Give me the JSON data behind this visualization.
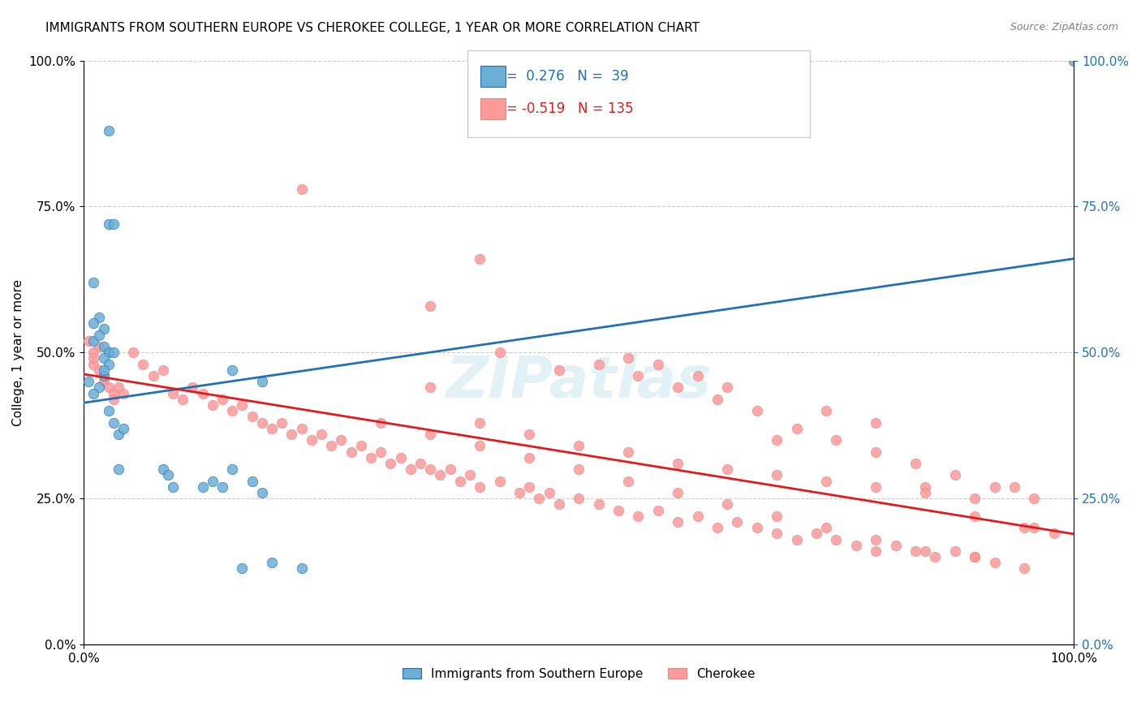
{
  "title": "IMMIGRANTS FROM SOUTHERN EUROPE VS CHEROKEE COLLEGE, 1 YEAR OR MORE CORRELATION CHART",
  "source": "Source: ZipAtlas.com",
  "xlabel": "",
  "ylabel": "College, 1 year or more",
  "xlim": [
    0,
    1
  ],
  "ylim": [
    0,
    1
  ],
  "xtick_labels": [
    "0.0%",
    "100.0%"
  ],
  "ytick_labels": [
    "0.0%",
    "25.0%",
    "50.0%",
    "75.0%",
    "100.0%"
  ],
  "ytick_positions": [
    0,
    0.25,
    0.5,
    0.75,
    1.0
  ],
  "blue_R": "0.276",
  "blue_N": "39",
  "pink_R": "-0.519",
  "pink_N": "135",
  "blue_color": "#6baed6",
  "pink_color": "#fb9a99",
  "blue_line_color": "#2171b5",
  "pink_line_color": "#e31a1c",
  "grid_color": "#cccccc",
  "watermark": "ZIPatlas",
  "legend_label_blue": "Immigrants from Southern Europe",
  "legend_label_pink": "Cherokee",
  "blue_scatter_x": [
    0.02,
    0.01,
    0.015,
    0.01,
    0.02,
    0.025,
    0.015,
    0.02,
    0.025,
    0.03,
    0.02,
    0.015,
    0.01,
    0.005,
    0.01,
    0.02,
    0.025,
    0.03,
    0.035,
    0.04,
    0.035,
    0.08,
    0.085,
    0.09,
    0.12,
    0.13,
    0.14,
    0.15,
    0.16,
    0.17,
    0.18,
    0.19,
    0.22,
    0.025,
    0.03,
    0.18,
    0.025,
    0.15,
    1.0
  ],
  "blue_scatter_y": [
    0.54,
    0.52,
    0.56,
    0.55,
    0.51,
    0.5,
    0.53,
    0.49,
    0.48,
    0.5,
    0.46,
    0.44,
    0.43,
    0.45,
    0.62,
    0.47,
    0.4,
    0.38,
    0.36,
    0.37,
    0.3,
    0.3,
    0.29,
    0.27,
    0.27,
    0.28,
    0.27,
    0.3,
    0.13,
    0.28,
    0.26,
    0.14,
    0.13,
    0.72,
    0.72,
    0.45,
    0.88,
    0.47,
    1.0
  ],
  "pink_scatter_x": [
    0.005,
    0.01,
    0.015,
    0.01,
    0.02,
    0.01,
    0.015,
    0.02,
    0.025,
    0.03,
    0.02,
    0.03,
    0.035,
    0.04,
    0.05,
    0.06,
    0.07,
    0.08,
    0.09,
    0.1,
    0.11,
    0.12,
    0.13,
    0.14,
    0.15,
    0.16,
    0.17,
    0.18,
    0.19,
    0.2,
    0.21,
    0.22,
    0.23,
    0.24,
    0.25,
    0.26,
    0.27,
    0.28,
    0.29,
    0.3,
    0.31,
    0.32,
    0.33,
    0.34,
    0.35,
    0.36,
    0.37,
    0.38,
    0.39,
    0.4,
    0.42,
    0.44,
    0.45,
    0.46,
    0.47,
    0.48,
    0.5,
    0.52,
    0.54,
    0.56,
    0.58,
    0.6,
    0.62,
    0.64,
    0.66,
    0.68,
    0.7,
    0.72,
    0.74,
    0.76,
    0.78,
    0.8,
    0.82,
    0.84,
    0.86,
    0.88,
    0.9,
    0.92,
    0.94,
    0.96,
    0.98,
    0.4,
    0.22,
    0.35,
    0.42,
    0.48,
    0.55,
    0.58,
    0.62,
    0.65,
    0.7,
    0.75,
    0.8,
    0.85,
    0.9,
    0.35,
    0.4,
    0.45,
    0.5,
    0.55,
    0.6,
    0.65,
    0.7,
    0.75,
    0.8,
    0.85,
    0.9,
    0.95,
    0.52,
    0.56,
    0.6,
    0.64,
    0.68,
    0.72,
    0.76,
    0.8,
    0.84,
    0.88,
    0.92,
    0.96,
    0.3,
    0.35,
    0.4,
    0.45,
    0.5,
    0.55,
    0.6,
    0.65,
    0.7,
    0.75,
    0.8,
    0.85,
    0.9,
    0.95
  ],
  "pink_scatter_y": [
    0.52,
    0.5,
    0.51,
    0.48,
    0.46,
    0.49,
    0.47,
    0.45,
    0.44,
    0.43,
    0.46,
    0.42,
    0.44,
    0.43,
    0.5,
    0.48,
    0.46,
    0.47,
    0.43,
    0.42,
    0.44,
    0.43,
    0.41,
    0.42,
    0.4,
    0.41,
    0.39,
    0.38,
    0.37,
    0.38,
    0.36,
    0.37,
    0.35,
    0.36,
    0.34,
    0.35,
    0.33,
    0.34,
    0.32,
    0.33,
    0.31,
    0.32,
    0.3,
    0.31,
    0.3,
    0.29,
    0.3,
    0.28,
    0.29,
    0.27,
    0.28,
    0.26,
    0.27,
    0.25,
    0.26,
    0.24,
    0.25,
    0.24,
    0.23,
    0.22,
    0.23,
    0.21,
    0.22,
    0.2,
    0.21,
    0.2,
    0.19,
    0.18,
    0.19,
    0.18,
    0.17,
    0.16,
    0.17,
    0.16,
    0.15,
    0.16,
    0.15,
    0.14,
    0.27,
    0.2,
    0.19,
    0.66,
    0.78,
    0.58,
    0.5,
    0.47,
    0.49,
    0.48,
    0.46,
    0.44,
    0.35,
    0.4,
    0.38,
    0.27,
    0.22,
    0.44,
    0.38,
    0.36,
    0.34,
    0.33,
    0.31,
    0.3,
    0.29,
    0.28,
    0.27,
    0.26,
    0.25,
    0.2,
    0.48,
    0.46,
    0.44,
    0.42,
    0.4,
    0.37,
    0.35,
    0.33,
    0.31,
    0.29,
    0.27,
    0.25,
    0.38,
    0.36,
    0.34,
    0.32,
    0.3,
    0.28,
    0.26,
    0.24,
    0.22,
    0.2,
    0.18,
    0.16,
    0.15,
    0.13
  ],
  "title_fontsize": 11,
  "axis_label_fontsize": 11,
  "tick_fontsize": 11,
  "legend_fontsize": 12
}
